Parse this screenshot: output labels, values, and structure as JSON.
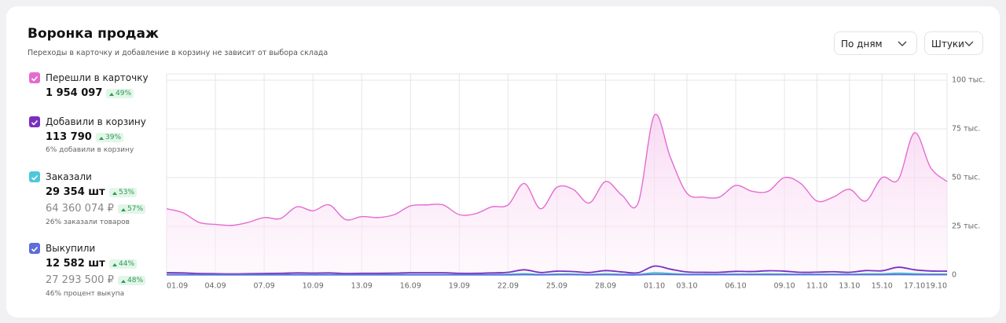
{
  "header": {
    "title": "Воронка продаж",
    "subtitle": "Переходы в карточку и добавление в корзину не зависит от выбора склада",
    "period": "По дням",
    "unit": "Штуки"
  },
  "metrics": [
    {
      "value": "1 954 097",
      "change": "49%"
    },
    {
      "value": "113 790",
      "change": "39%",
      "note": "6% добавили в корзину"
    },
    {
      "value": "29 354 шт",
      "change": "53%",
      "value2": "64 360 074 ₽",
      "change2": "57%",
      "note": "26% заказали товаров"
    },
    {
      "value": "12 582 шт",
      "change": "44%",
      "value2": "27 293 500 ₽",
      "change2": "48%",
      "note": "46% процент выкупа"
    }
  ],
  "chart_data": {
    "type": "line",
    "categories": [
      "01.09",
      null,
      null,
      "04.09",
      null,
      null,
      "07.09",
      null,
      null,
      "10.09",
      null,
      null,
      "13.09",
      null,
      null,
      "16.09",
      null,
      null,
      "19.09",
      null,
      null,
      "22.09",
      null,
      null,
      "25.09",
      null,
      null,
      "28.09",
      null,
      null,
      "01.10",
      null,
      "03.10",
      null,
      null,
      "06.10",
      null,
      null,
      "09.10",
      null,
      "11.10",
      null,
      "13.10",
      null,
      "15.10",
      null,
      "17.10",
      null,
      "19.10"
    ],
    "series": [
      {
        "name": "Перешли в карточку",
        "color": "#e46bd0",
        "values": [
          34000,
          32000,
          27000,
          26000,
          25500,
          27000,
          29500,
          29000,
          35000,
          33000,
          36000,
          28500,
          30000,
          29500,
          31000,
          35500,
          36000,
          36000,
          31000,
          31500,
          35000,
          36000,
          47000,
          34000,
          45000,
          44000,
          37000,
          48000,
          41000,
          37000,
          82000,
          60000,
          42000,
          40000,
          40000,
          46000,
          43000,
          43000,
          50000,
          47000,
          38000,
          40000,
          44000,
          38000,
          50000,
          49000,
          73000,
          55000,
          48000
        ]
      },
      {
        "name": "Добавили в корзину",
        "color": "#7a2fc0",
        "values": [
          1200,
          1100,
          800,
          700,
          600,
          700,
          800,
          900,
          1100,
          1000,
          1100,
          800,
          900,
          900,
          1000,
          1200,
          1200,
          1200,
          900,
          900,
          1100,
          1400,
          2700,
          1300,
          2000,
          1800,
          1300,
          2300,
          1600,
          1200,
          4600,
          3000,
          1600,
          1400,
          1400,
          1900,
          1800,
          2200,
          2000,
          1400,
          1500,
          1700,
          1400,
          2300,
          2200,
          4000,
          2700,
          2100,
          2000
        ]
      },
      {
        "name": "Заказали",
        "color": "#4fc7d9",
        "values": [
          300,
          300,
          200,
          200,
          200,
          200,
          200,
          200,
          300,
          300,
          300,
          200,
          200,
          200,
          300,
          300,
          300,
          300,
          200,
          200,
          300,
          400,
          700,
          300,
          500,
          500,
          300,
          600,
          400,
          300,
          1200,
          800,
          400,
          400,
          400,
          500,
          500,
          600,
          500,
          400,
          400,
          400,
          400,
          600,
          600,
          1000,
          700,
          500,
          500
        ]
      },
      {
        "name": "Выкупили",
        "color": "#5b6ed8",
        "values": [
          100,
          100,
          100,
          100,
          100,
          100,
          100,
          100,
          100,
          100,
          100,
          100,
          100,
          100,
          100,
          100,
          100,
          100,
          100,
          100,
          100,
          100,
          200,
          100,
          200,
          200,
          100,
          200,
          100,
          100,
          400,
          300,
          200,
          200,
          200,
          200,
          200,
          200,
          200,
          200,
          200,
          200,
          200,
          200,
          200,
          300,
          200,
          200,
          200
        ]
      }
    ],
    "ylim": [
      0,
      100000
    ],
    "yticks": [
      0,
      {
        "value": 25000,
        "label": "25 тыс."
      },
      {
        "value": 50000,
        "label": "50 тыс."
      },
      {
        "value": 75000,
        "label": "75 тыс."
      },
      {
        "value": 100000,
        "label": "100 тыс."
      }
    ],
    "grid": true
  }
}
